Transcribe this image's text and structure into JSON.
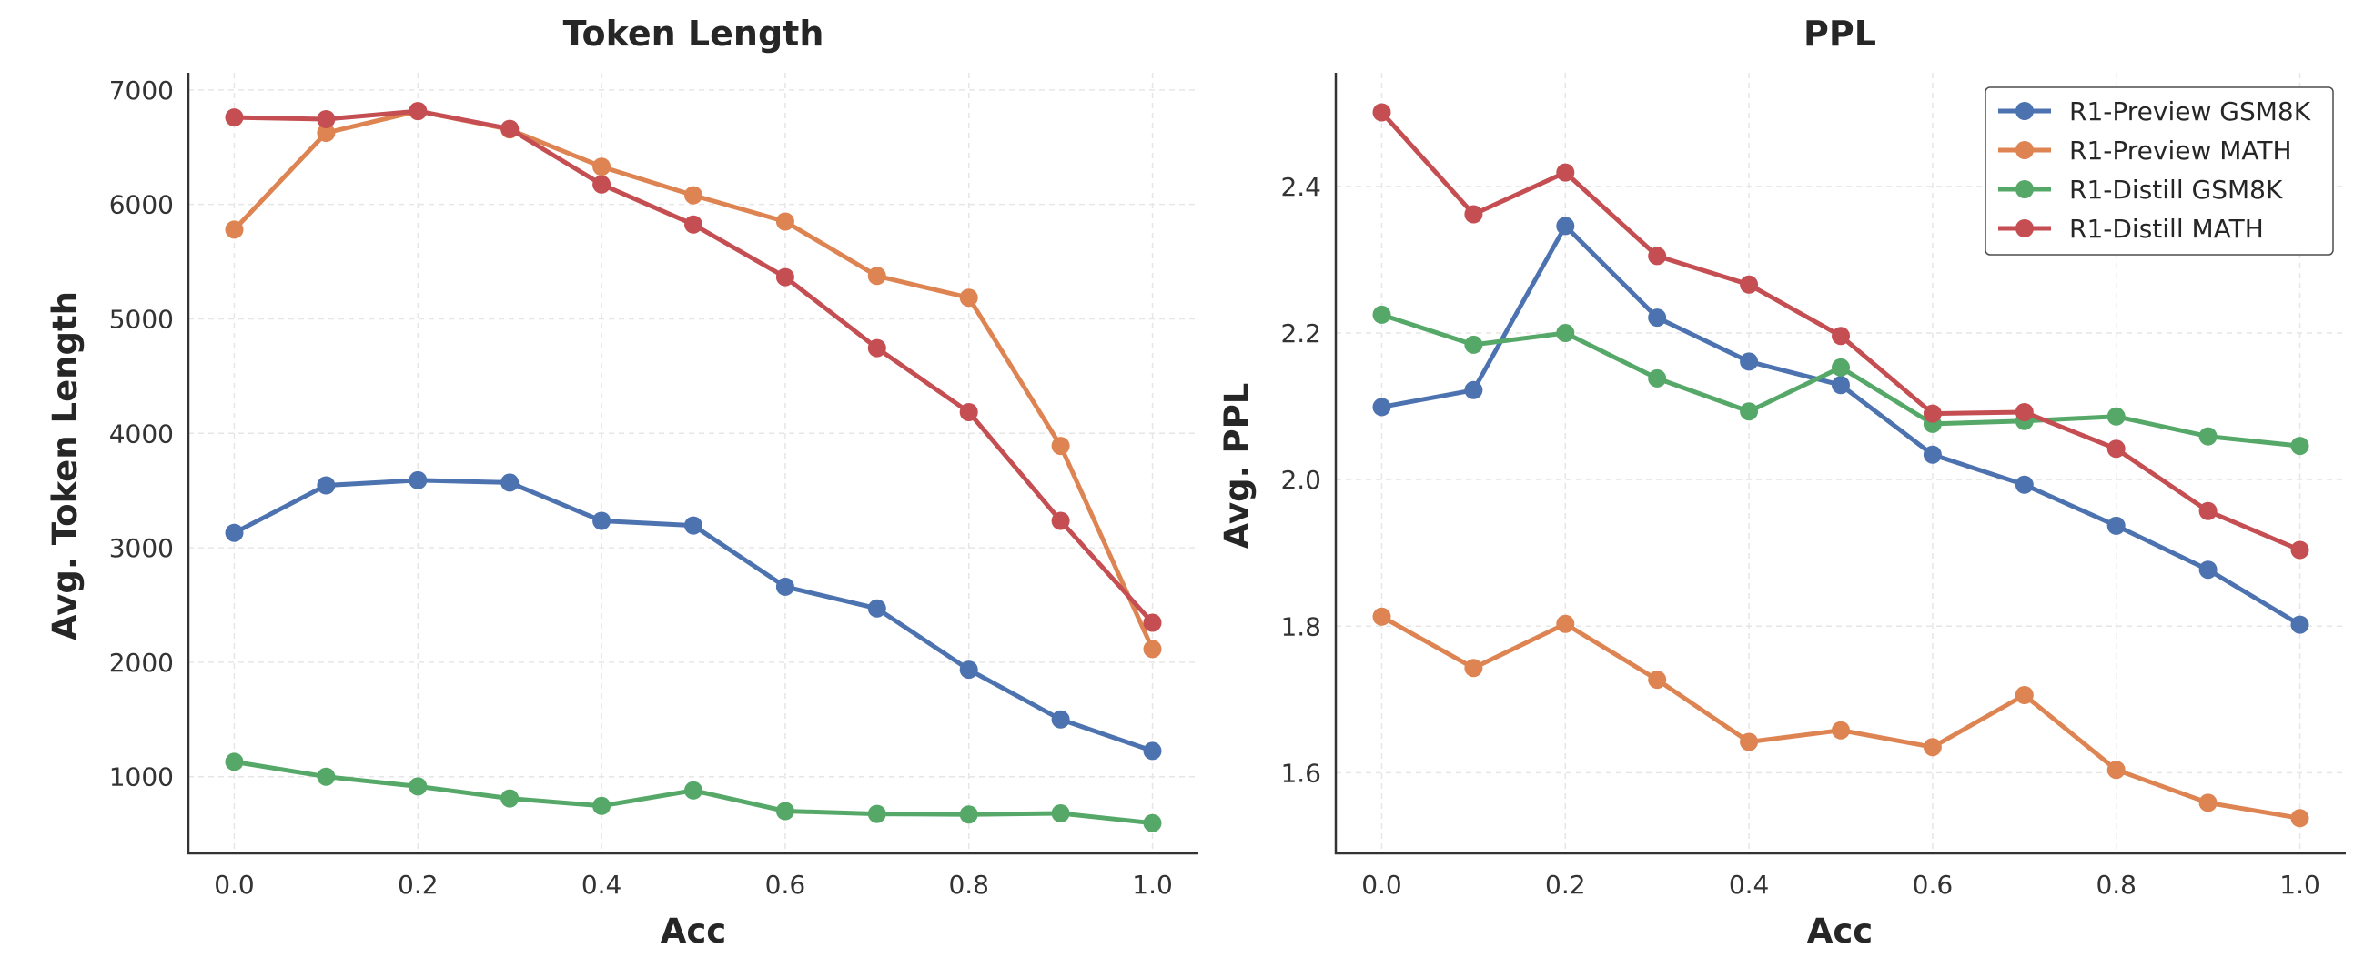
{
  "chart_data": [
    {
      "type": "line",
      "title": "Token Length",
      "xlabel": "Acc",
      "ylabel": "Avg. Token Length",
      "x": [
        0.0,
        0.1,
        0.2,
        0.3,
        0.4,
        0.5,
        0.6,
        0.7,
        0.8,
        0.9,
        1.0
      ],
      "xlim": [
        -0.05,
        1.05
      ],
      "ylim": [
        330,
        7150
      ],
      "xticks": [
        "0.0",
        "0.2",
        "0.4",
        "0.6",
        "0.8",
        "1.0"
      ],
      "yticks": [
        "1000",
        "2000",
        "3000",
        "4000",
        "5000",
        "6000",
        "7000"
      ],
      "grid": true,
      "series": [
        {
          "name": "R1-Preview GSM8K",
          "color": "#4c72b0",
          "values": [
            3130,
            3545,
            3590,
            3570,
            3235,
            3195,
            2660,
            2470,
            1935,
            1500,
            1225
          ]
        },
        {
          "name": "R1-Preview MATH",
          "color": "#dd8452",
          "values": [
            5780,
            6625,
            6815,
            6655,
            6330,
            6080,
            5850,
            5375,
            5185,
            3890,
            2115
          ]
        },
        {
          "name": "R1-Distill GSM8K",
          "color": "#55a868",
          "values": [
            1130,
            1000,
            915,
            810,
            745,
            880,
            700,
            675,
            670,
            680,
            595
          ]
        },
        {
          "name": "R1-Distill MATH",
          "color": "#c44e52",
          "values": [
            6760,
            6745,
            6815,
            6660,
            6175,
            5825,
            5365,
            4745,
            4185,
            3235,
            2345
          ]
        }
      ]
    },
    {
      "type": "line",
      "title": "PPL",
      "xlabel": "Acc",
      "ylabel": "Avg. PPL",
      "x": [
        0.0,
        0.1,
        0.2,
        0.3,
        0.4,
        0.5,
        0.6,
        0.7,
        0.8,
        0.9,
        1.0
      ],
      "xlim": [
        -0.05,
        1.05
      ],
      "ylim": [
        1.49,
        2.555
      ],
      "xticks": [
        "0.0",
        "0.2",
        "0.4",
        "0.6",
        "0.8",
        "1.0"
      ],
      "yticks": [
        "1.6",
        "1.8",
        "2.0",
        "2.2",
        "2.4"
      ],
      "grid": true,
      "legend_position": "top-right",
      "series": [
        {
          "name": "R1-Preview GSM8K",
          "color": "#4c72b0",
          "values": [
            2.099,
            2.122,
            2.346,
            2.221,
            2.161,
            2.129,
            2.034,
            1.993,
            1.937,
            1.877,
            1.802
          ]
        },
        {
          "name": "R1-Preview MATH",
          "color": "#dd8452",
          "values": [
            1.813,
            1.743,
            1.803,
            1.727,
            1.642,
            1.658,
            1.635,
            1.706,
            1.604,
            1.559,
            1.538
          ]
        },
        {
          "name": "R1-Distill GSM8K",
          "color": "#55a868",
          "values": [
            2.225,
            2.184,
            2.2,
            2.138,
            2.093,
            2.153,
            2.076,
            2.08,
            2.086,
            2.059,
            2.046
          ]
        },
        {
          "name": "R1-Distill MATH",
          "color": "#c44e52",
          "values": [
            2.501,
            2.362,
            2.419,
            2.305,
            2.266,
            2.196,
            2.09,
            2.092,
            2.042,
            1.957,
            1.904
          ]
        }
      ]
    }
  ]
}
